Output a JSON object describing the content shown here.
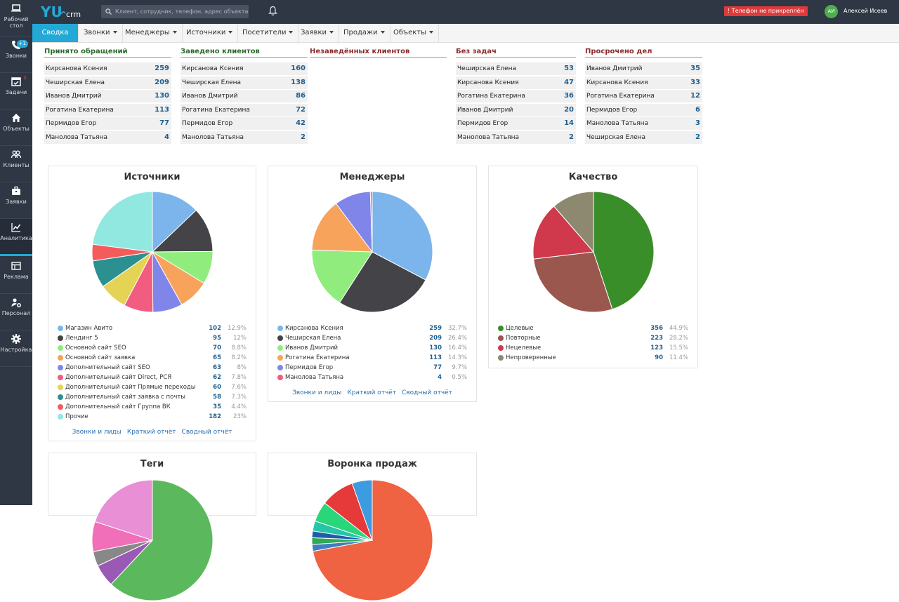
{
  "header": {
    "search_placeholder": "Клиент, сотрудник, телефон, адрес объекта",
    "phone_alert": "! Телефон не прикреплён",
    "avatar_initials": "АИ",
    "user_name": "Алексей Исеев"
  },
  "sidebar": {
    "items": [
      {
        "label": "Рабочий стол",
        "icon": "laptop-icon"
      },
      {
        "label": "Звонки",
        "icon": "phone-icon",
        "badge": "+1"
      },
      {
        "label": "Задачи",
        "icon": "calendar-check-icon",
        "badge": "1"
      },
      {
        "label": "Объекты",
        "icon": "home-icon"
      },
      {
        "label": "Клиенты",
        "icon": "users-icon"
      },
      {
        "label": "Заявки",
        "icon": "briefcase-icon"
      },
      {
        "label": "Аналитика",
        "icon": "chart-line-icon"
      },
      {
        "label": "Реклама",
        "icon": "table-icon"
      },
      {
        "label": "Персонал",
        "icon": "user-gear-icon"
      },
      {
        "label": "Настройка",
        "icon": "gear-icon"
      }
    ]
  },
  "nav": {
    "tabs": [
      {
        "label": "Сводка"
      },
      {
        "label": "Звонки"
      },
      {
        "label": "Менеджеры"
      },
      {
        "label": "Источники"
      },
      {
        "label": "Посетители"
      },
      {
        "label": "Заявки"
      },
      {
        "label": "Продажи"
      },
      {
        "label": "Объекты"
      }
    ]
  },
  "stats": [
    {
      "title": "Принято обращений",
      "rows": [
        {
          "name": "Кирсанова Ксения",
          "value": "259"
        },
        {
          "name": "Чеширская Елена",
          "value": "209"
        },
        {
          "name": "Иванов Дмитрий",
          "value": "130"
        },
        {
          "name": "Рогатина Екатерина",
          "value": "113"
        },
        {
          "name": "Пермидов Егор",
          "value": "77"
        },
        {
          "name": "Манолова Татьяна",
          "value": "4"
        }
      ]
    },
    {
      "title": "Заведено клиентов",
      "rows": [
        {
          "name": "Кирсанова Ксения",
          "value": "160"
        },
        {
          "name": "Чеширская Елена",
          "value": "138"
        },
        {
          "name": "Иванов Дмитрий",
          "value": "86"
        },
        {
          "name": "Рогатина Екатерина",
          "value": "72"
        },
        {
          "name": "Пермидов Егор",
          "value": "42"
        },
        {
          "name": "Манолова Татьяна",
          "value": "2"
        }
      ]
    },
    {
      "title": "Незаведённых клиентов",
      "rows": []
    },
    {
      "title": "Без задач",
      "rows": [
        {
          "name": "Чеширская Елена",
          "value": "53"
        },
        {
          "name": "Кирсанова Ксения",
          "value": "47"
        },
        {
          "name": "Рогатина Екатерина",
          "value": "36"
        },
        {
          "name": "Иванов Дмитрий",
          "value": "20"
        },
        {
          "name": "Пермидов Егор",
          "value": "14"
        },
        {
          "name": "Манолова Татьяна",
          "value": "2"
        }
      ]
    },
    {
      "title": "Просрочено дел",
      "rows": [
        {
          "name": "Иванов Дмитрий",
          "value": "35"
        },
        {
          "name": "Кирсанова Ксения",
          "value": "33"
        },
        {
          "name": "Рогатина Екатерина",
          "value": "12"
        },
        {
          "name": "Пермидов Егор",
          "value": "6"
        },
        {
          "name": "Манолова Татьяна",
          "value": "3"
        },
        {
          "name": "Чеширская Елена",
          "value": "2"
        }
      ]
    }
  ],
  "chart_data": [
    {
      "type": "pie",
      "title": "Источники",
      "categories": [
        "Магазин Авито",
        "Лендинг 5",
        "Основной сайт SEO",
        "Основной сайт заявка",
        "Дополнительный сайт SEO",
        "Дополнительный сайт Direct, РСЯ",
        "Дополнительный сайт Прямые переходы",
        "Дополнительный сайт заявка с почты",
        "Дополнительный сайт Группа ВК",
        "Прочие"
      ],
      "values": [
        102,
        95,
        70,
        65,
        63,
        62,
        60,
        58,
        35,
        182
      ],
      "percents": [
        "12.9%",
        "12%",
        "8.8%",
        "8.2%",
        "8%",
        "7.8%",
        "7.6%",
        "7.3%",
        "4.4%",
        "23%"
      ],
      "colors": [
        "#7cb5ec",
        "#434348",
        "#90ed7d",
        "#f7a35c",
        "#8085e9",
        "#f15c80",
        "#e4d354",
        "#2b908f",
        "#f45b5b",
        "#91e8e1"
      ],
      "links": [
        "Звонки и лиды",
        "Краткий отчёт",
        "Сводный отчёт"
      ]
    },
    {
      "type": "pie",
      "title": "Менеджеры",
      "categories": [
        "Кирсанова Ксения",
        "Чеширская Елена",
        "Иванов Дмитрий",
        "Рогатина Екатерина",
        "Пермидов Егор",
        "Манолова Татьяна"
      ],
      "values": [
        259,
        209,
        130,
        113,
        77,
        4
      ],
      "percents": [
        "32.7%",
        "26.4%",
        "16.4%",
        "14.3%",
        "9.7%",
        "0.5%"
      ],
      "colors": [
        "#7cb5ec",
        "#434348",
        "#90ed7d",
        "#f7a35c",
        "#8085e9",
        "#f15c80"
      ],
      "links": [
        "Звонки и лиды",
        "Краткий отчёт",
        "Сводный отчёт"
      ]
    },
    {
      "type": "pie",
      "title": "Качество",
      "categories": [
        "Целевые",
        "Повторные",
        "Нецелевые",
        "Непроверенные"
      ],
      "values": [
        356,
        223,
        123,
        90
      ],
      "percents": [
        "44.9%",
        "28.2%",
        "15.5%",
        "11.4%"
      ],
      "colors": [
        "#3a8e2a",
        "#99574d",
        "#d0384c",
        "#8d8870"
      ],
      "links": []
    },
    {
      "type": "pie",
      "title": "Теги",
      "categories": [],
      "values": [],
      "links": []
    },
    {
      "type": "pie",
      "title": "Воронка продаж",
      "categories": [],
      "values": [],
      "links": []
    }
  ]
}
